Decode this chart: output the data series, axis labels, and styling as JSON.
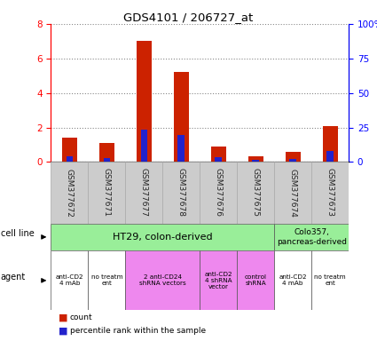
{
  "title": "GDS4101 / 206727_at",
  "samples": [
    "GSM377672",
    "GSM377671",
    "GSM377677",
    "GSM377678",
    "GSM377676",
    "GSM377675",
    "GSM377674",
    "GSM377673"
  ],
  "count_values": [
    1.4,
    1.1,
    7.0,
    5.2,
    0.9,
    0.35,
    0.6,
    2.1
  ],
  "percentile_values": [
    0.35,
    0.25,
    1.85,
    1.55,
    0.3,
    0.12,
    0.2,
    0.65
  ],
  "ylim_left": [
    0,
    8
  ],
  "ylim_right": [
    0,
    100
  ],
  "yticks_left": [
    0,
    2,
    4,
    6,
    8
  ],
  "yticks_right": [
    0,
    25,
    50,
    75,
    100
  ],
  "ytick_labels_right": [
    "0",
    "25",
    "50",
    "75",
    "100%"
  ],
  "bar_color_red": "#cc2200",
  "bar_color_blue": "#2222cc",
  "grid_color": "#888888",
  "cell_line_ht29_label": "HT29, colon-derived",
  "cell_line_colo_label": "Colo357,\npancreas-derived",
  "sample_bg_color": "#cccccc",
  "cell_line_green": "#99ee99",
  "agent_white": "#ffffff",
  "agent_pink": "#ee88ee",
  "bg_color": "#ffffff"
}
